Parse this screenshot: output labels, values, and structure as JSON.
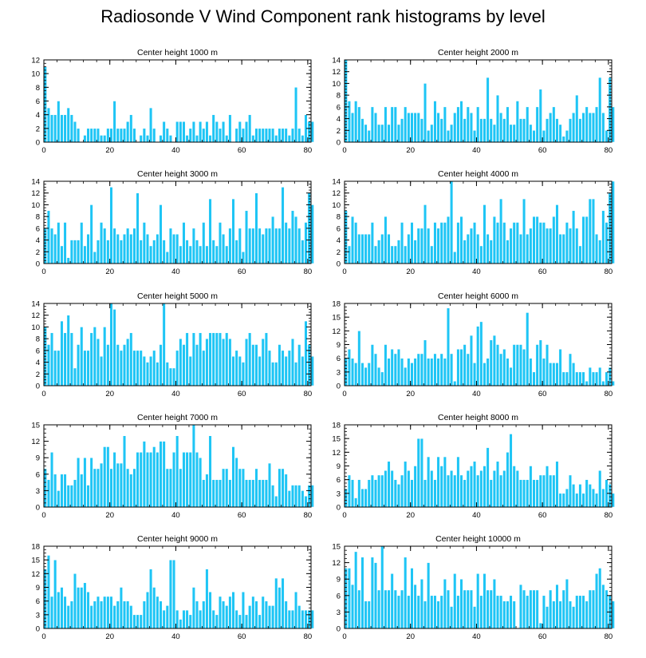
{
  "title": "Radiosonde V Wind Component rank histograms by level",
  "colors": {
    "bar_fill": "#1ec5f5",
    "bar_edge": "#ffffff",
    "axis": "#000000"
  },
  "chart_data": [
    {
      "type": "bar",
      "title": "Center height 1000 m",
      "xlim": [
        0,
        81
      ],
      "ylim": [
        0,
        12
      ],
      "xticks": [
        0,
        20,
        40,
        60,
        80
      ],
      "yticks": [
        0,
        2,
        4,
        6,
        8,
        10,
        12
      ],
      "values": [
        11,
        5,
        4,
        4,
        6,
        4,
        4,
        5,
        4,
        3,
        2,
        0,
        1,
        2,
        2,
        2,
        2,
        1,
        1,
        2,
        2,
        6,
        2,
        2,
        2,
        3,
        4,
        2,
        0,
        1,
        2,
        1,
        5,
        2,
        0,
        1,
        3,
        2,
        1,
        0,
        3,
        3,
        3,
        1,
        2,
        3,
        1,
        3,
        2,
        3,
        1,
        4,
        3,
        2,
        3,
        1,
        4,
        0,
        2,
        3,
        2,
        3,
        4,
        1,
        2,
        2,
        2,
        2,
        2,
        2,
        1,
        2,
        2,
        2,
        1,
        2,
        8,
        2,
        1,
        4,
        3,
        3
      ]
    },
    {
      "type": "bar",
      "title": "Center height 2000 m",
      "xlim": [
        0,
        81
      ],
      "ylim": [
        0,
        14
      ],
      "xticks": [
        0,
        20,
        40,
        60,
        80
      ],
      "yticks": [
        0,
        2,
        4,
        6,
        8,
        10,
        12,
        14
      ],
      "values": [
        14,
        7,
        5,
        7,
        6,
        4,
        3,
        2,
        6,
        5,
        3,
        3,
        6,
        3,
        6,
        6,
        3,
        4,
        6,
        5,
        5,
        5,
        5,
        4,
        10,
        2,
        3,
        7,
        5,
        4,
        6,
        2,
        3,
        5,
        6,
        7,
        4,
        6,
        5,
        2,
        6,
        4,
        4,
        11,
        4,
        3,
        8,
        5,
        4,
        6,
        3,
        3,
        7,
        4,
        4,
        6,
        3,
        2,
        6,
        9,
        2,
        4,
        5,
        6,
        4,
        3,
        1,
        2,
        4,
        5,
        8,
        4,
        5,
        6,
        5,
        5,
        6,
        11,
        5,
        2,
        11,
        6
      ]
    },
    {
      "type": "bar",
      "title": "Center height 3000 m",
      "xlim": [
        0,
        81
      ],
      "ylim": [
        0,
        14
      ],
      "xticks": [
        0,
        20,
        40,
        60,
        80
      ],
      "yticks": [
        0,
        2,
        4,
        6,
        8,
        10,
        12,
        14
      ],
      "values": [
        6,
        9,
        6,
        5,
        7,
        3,
        7,
        1,
        4,
        4,
        4,
        7,
        3,
        5,
        10,
        2,
        4,
        7,
        6,
        4,
        13,
        6,
        5,
        4,
        5,
        6,
        5,
        6,
        12,
        4,
        7,
        5,
        3,
        4,
        5,
        10,
        4,
        2,
        6,
        5,
        5,
        3,
        7,
        4,
        3,
        6,
        4,
        3,
        7,
        3,
        11,
        4,
        3,
        7,
        5,
        3,
        6,
        11,
        4,
        6,
        2,
        9,
        6,
        6,
        12,
        6,
        5,
        6,
        6,
        8,
        6,
        6,
        13,
        7,
        6,
        9,
        8,
        6,
        4,
        7,
        12,
        10
      ]
    },
    {
      "type": "bar",
      "title": "Center height 4000 m",
      "xlim": [
        0,
        81
      ],
      "ylim": [
        0,
        14
      ],
      "xticks": [
        0,
        20,
        40,
        60,
        80
      ],
      "yticks": [
        0,
        2,
        4,
        6,
        8,
        10,
        12,
        14
      ],
      "values": [
        9,
        3,
        8,
        7,
        5,
        5,
        5,
        5,
        7,
        3,
        4,
        5,
        8,
        5,
        3,
        3,
        4,
        7,
        3,
        5,
        7,
        4,
        6,
        6,
        10,
        6,
        3,
        7,
        6,
        7,
        7,
        8,
        14,
        2,
        7,
        8,
        4,
        5,
        6,
        7,
        5,
        3,
        10,
        5,
        4,
        8,
        7,
        11,
        7,
        4,
        6,
        7,
        7,
        5,
        11,
        5,
        6,
        8,
        8,
        7,
        7,
        6,
        6,
        8,
        10,
        5,
        5,
        7,
        6,
        9,
        6,
        3,
        8,
        8,
        11,
        11,
        5,
        4,
        9,
        7,
        12,
        14
      ]
    },
    {
      "type": "bar",
      "title": "Center height 5000 m",
      "xlim": [
        0,
        81
      ],
      "ylim": [
        0,
        14
      ],
      "xticks": [
        0,
        20,
        40,
        60,
        80
      ],
      "yticks": [
        0,
        2,
        4,
        6,
        8,
        10,
        12,
        14
      ],
      "values": [
        10,
        7,
        9,
        6,
        6,
        11,
        9,
        12,
        9,
        3,
        7,
        10,
        6,
        6,
        9,
        10,
        8,
        5,
        10,
        7,
        14,
        13,
        7,
        6,
        7,
        8,
        9,
        6,
        6,
        6,
        5,
        4,
        5,
        6,
        4,
        7,
        14,
        4,
        3,
        3,
        6,
        8,
        7,
        9,
        5,
        9,
        7,
        9,
        6,
        8,
        9,
        9,
        9,
        9,
        8,
        9,
        8,
        5,
        6,
        5,
        4,
        8,
        9,
        7,
        7,
        5,
        8,
        9,
        6,
        4,
        4,
        7,
        6,
        5,
        6,
        8,
        4,
        7,
        5,
        11,
        7,
        5
      ]
    },
    {
      "type": "bar",
      "title": "Center height 6000 m",
      "xlim": [
        0,
        81
      ],
      "ylim": [
        0,
        18
      ],
      "xticks": [
        0,
        20,
        40,
        60,
        80
      ],
      "yticks": [
        0,
        3,
        6,
        9,
        12,
        15,
        18
      ],
      "values": [
        6,
        8,
        6,
        5,
        12,
        5,
        4,
        5,
        9,
        7,
        4,
        3,
        9,
        6,
        8,
        7,
        8,
        6,
        4,
        6,
        5,
        6,
        7,
        7,
        10,
        6,
        6,
        7,
        6,
        7,
        6,
        17,
        7,
        1,
        8,
        8,
        9,
        7,
        11,
        5,
        13,
        14,
        5,
        6,
        10,
        11,
        9,
        7,
        8,
        6,
        4,
        9,
        9,
        9,
        8,
        16,
        6,
        3,
        9,
        10,
        6,
        9,
        5,
        5,
        5,
        8,
        3,
        3,
        7,
        5,
        3,
        3,
        3,
        1,
        4,
        3,
        3,
        4,
        1,
        3,
        4,
        1
      ]
    },
    {
      "type": "bar",
      "title": "Center height 7000 m",
      "xlim": [
        0,
        81
      ],
      "ylim": [
        0,
        15
      ],
      "xticks": [
        0,
        20,
        40,
        60,
        80
      ],
      "yticks": [
        0,
        3,
        6,
        9,
        12,
        15
      ],
      "values": [
        7,
        5,
        10,
        6,
        3,
        6,
        6,
        4,
        4,
        5,
        9,
        6,
        9,
        4,
        9,
        7,
        7,
        8,
        11,
        11,
        7,
        10,
        8,
        8,
        13,
        7,
        6,
        7,
        10,
        10,
        12,
        10,
        10,
        11,
        10,
        12,
        12,
        7,
        7,
        10,
        13,
        7,
        10,
        10,
        10,
        15,
        10,
        9,
        5,
        6,
        13,
        5,
        5,
        5,
        7,
        7,
        5,
        11,
        9,
        7,
        7,
        5,
        5,
        5,
        7,
        5,
        5,
        5,
        8,
        4,
        2,
        7,
        7,
        6,
        3,
        4,
        4,
        4,
        3,
        2,
        4,
        4
      ]
    },
    {
      "type": "bar",
      "title": "Center height 8000 m",
      "xlim": [
        0,
        81
      ],
      "ylim": [
        0,
        18
      ],
      "xticks": [
        0,
        20,
        40,
        60,
        80
      ],
      "yticks": [
        0,
        3,
        6,
        9,
        12,
        15,
        18
      ],
      "values": [
        4,
        7,
        6,
        2,
        6,
        4,
        4,
        6,
        7,
        6,
        7,
        7,
        8,
        10,
        8,
        6,
        5,
        7,
        10,
        8,
        6,
        9,
        15,
        15,
        6,
        11,
        8,
        6,
        11,
        9,
        11,
        7,
        8,
        7,
        11,
        7,
        6,
        8,
        9,
        10,
        7,
        8,
        9,
        13,
        6,
        8,
        10,
        7,
        8,
        12,
        16,
        9,
        8,
        6,
        6,
        6,
        9,
        6,
        6,
        7,
        7,
        9,
        7,
        7,
        10,
        3,
        3,
        4,
        7,
        5,
        3,
        5,
        3,
        6,
        5,
        4,
        3,
        8,
        4,
        6,
        5,
        3
      ]
    },
    {
      "type": "bar",
      "title": "Center height 9000 m",
      "xlim": [
        0,
        81
      ],
      "ylim": [
        0,
        18
      ],
      "xticks": [
        0,
        20,
        40,
        60,
        80
      ],
      "yticks": [
        0,
        3,
        6,
        9,
        12,
        15,
        18
      ],
      "values": [
        13,
        16,
        7,
        15,
        8,
        9,
        7,
        5,
        6,
        12,
        9,
        9,
        10,
        8,
        5,
        6,
        7,
        6,
        7,
        7,
        7,
        5,
        6,
        9,
        6,
        6,
        5,
        3,
        3,
        3,
        6,
        8,
        13,
        9,
        7,
        6,
        4,
        5,
        15,
        15,
        4,
        2,
        4,
        4,
        3,
        9,
        6,
        4,
        6,
        13,
        8,
        4,
        3,
        7,
        6,
        5,
        7,
        8,
        4,
        3,
        8,
        3,
        5,
        7,
        6,
        3,
        7,
        6,
        5,
        5,
        11,
        9,
        11,
        6,
        4,
        4,
        8,
        5,
        4,
        4,
        4,
        4
      ]
    },
    {
      "type": "bar",
      "title": "Center height 10000 m",
      "xlim": [
        0,
        81
      ],
      "ylim": [
        0,
        15
      ],
      "xticks": [
        0,
        20,
        40,
        60,
        80
      ],
      "yticks": [
        0,
        3,
        6,
        9,
        12,
        15
      ],
      "values": [
        11,
        11,
        8,
        14,
        7,
        13,
        5,
        5,
        13,
        12,
        7,
        15,
        7,
        7,
        10,
        7,
        6,
        7,
        13,
        6,
        11,
        8,
        6,
        9,
        5,
        12,
        6,
        6,
        5,
        6,
        9,
        7,
        4,
        10,
        6,
        9,
        7,
        7,
        7,
        4,
        10,
        6,
        10,
        7,
        7,
        9,
        6,
        6,
        5,
        5,
        6,
        5,
        0,
        8,
        7,
        6,
        7,
        7,
        7,
        1,
        6,
        4,
        7,
        5,
        8,
        5,
        7,
        9,
        5,
        4,
        6,
        6,
        6,
        5,
        7,
        7,
        10,
        11,
        8,
        7,
        6,
        5
      ]
    }
  ]
}
